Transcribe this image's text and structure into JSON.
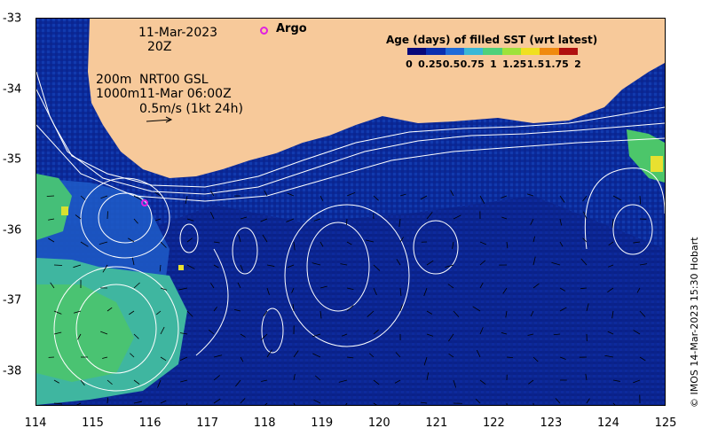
{
  "map": {
    "date": "11-Mar-2023",
    "time": "20Z",
    "depth_label": "200m",
    "depth_label_2": "1000m",
    "source_label": "NRT00 GSL",
    "source_time": "11-Mar 06:00Z",
    "vector_scale": "0.5m/s (1kt 24h)",
    "argo_label": "Argo",
    "credit": "© IMOS 14-Mar-2023 15:30 Hobart",
    "legend": {
      "title": "Age (days) of filled SST (wrt latest)",
      "labels": [
        "0",
        "0.25",
        "0.5",
        "0.75",
        "1",
        "1.25",
        "1.5",
        "1.75",
        "2"
      ],
      "colors": [
        "#08087a",
        "#0a2fb0",
        "#1f6bd8",
        "#3ab8d6",
        "#4fd07a",
        "#9ee23a",
        "#f0e020",
        "#f08a10",
        "#b01010"
      ]
    },
    "x_ticks": [
      "114",
      "115",
      "116",
      "117",
      "118",
      "119",
      "120",
      "121",
      "122",
      "123",
      "124",
      "125"
    ],
    "y_ticks": [
      "-33",
      "-34",
      "-35",
      "-36",
      "-37",
      "-38"
    ],
    "colors": {
      "land": "#f7c99a",
      "ocean_deep": "#0a2a9a",
      "ocean_dark": "#091d7a",
      "ocean_mid": "#1c4fc8",
      "ocean_light": "#2f7ad4",
      "green": "#4cc06a",
      "yellow": "#e8e030",
      "argo": "#e020e0"
    }
  }
}
